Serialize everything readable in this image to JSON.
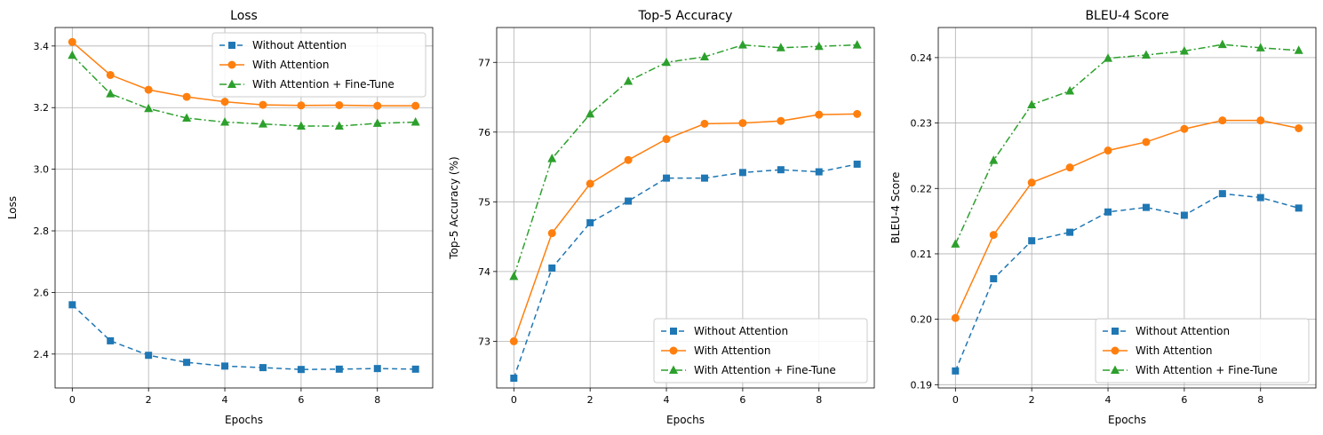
{
  "chart_data": [
    {
      "type": "line",
      "title": "Loss",
      "xlabel": "Epochs",
      "ylabel": "Loss",
      "xlim": [
        -0.45,
        9.45
      ],
      "ylim": [
        2.29,
        3.46
      ],
      "xticks": [
        0,
        2,
        4,
        6,
        8
      ],
      "xtick_labels": [
        "0",
        "2",
        "4",
        "6",
        "8"
      ],
      "yticks": [
        2.4,
        2.6,
        2.8,
        3.0,
        3.2,
        3.4
      ],
      "ytick_labels": [
        "2.4",
        "2.6",
        "2.8",
        "3.0",
        "3.2",
        "3.4"
      ],
      "grid": true,
      "legend_position": "top-right",
      "x": [
        0,
        1,
        2,
        3,
        4,
        5,
        6,
        7,
        8,
        9
      ],
      "series": [
        {
          "name": "Without Attention",
          "color": "#1f77b4",
          "linestyle": "dashed",
          "marker": "square",
          "values": [
            2.56,
            2.443,
            2.396,
            2.373,
            2.361,
            2.356,
            2.35,
            2.351,
            2.353,
            2.351
          ]
        },
        {
          "name": "With Attention",
          "color": "#ff7f0e",
          "linestyle": "solid",
          "marker": "circle",
          "values": [
            3.413,
            3.306,
            3.258,
            3.235,
            3.219,
            3.209,
            3.207,
            3.208,
            3.206,
            3.206
          ]
        },
        {
          "name": "With Attention + Fine-Tune",
          "color": "#2ca02c",
          "linestyle": "dashdot",
          "marker": "triangle",
          "values": [
            3.37,
            3.245,
            3.197,
            3.166,
            3.153,
            3.147,
            3.14,
            3.14,
            3.149,
            3.153
          ]
        }
      ]
    },
    {
      "type": "line",
      "title": "Top-5 Accuracy",
      "xlabel": "Epochs",
      "ylabel": "Top-5 Accuracy (%)",
      "xlim": [
        -0.45,
        9.45
      ],
      "ylim": [
        72.33,
        77.5
      ],
      "xticks": [
        0,
        2,
        4,
        6,
        8
      ],
      "xtick_labels": [
        "0",
        "2",
        "4",
        "6",
        "8"
      ],
      "yticks": [
        73,
        74,
        75,
        76,
        77
      ],
      "ytick_labels": [
        "73",
        "74",
        "75",
        "76",
        "77"
      ],
      "grid": true,
      "legend_position": "bottom-right",
      "x": [
        0,
        1,
        2,
        3,
        4,
        5,
        6,
        7,
        8,
        9
      ],
      "series": [
        {
          "name": "Without Attention",
          "color": "#1f77b4",
          "linestyle": "dashed",
          "marker": "square",
          "values": [
            72.47,
            74.05,
            74.7,
            75.01,
            75.34,
            75.34,
            75.42,
            75.46,
            75.43,
            75.54
          ]
        },
        {
          "name": "With Attention",
          "color": "#ff7f0e",
          "linestyle": "solid",
          "marker": "circle",
          "values": [
            73.0,
            74.55,
            75.26,
            75.6,
            75.9,
            76.12,
            76.13,
            76.16,
            76.25,
            76.26
          ]
        },
        {
          "name": "With Attention + Fine-Tune",
          "color": "#2ca02c",
          "linestyle": "dashdot",
          "marker": "triangle",
          "values": [
            73.93,
            75.62,
            76.26,
            76.73,
            77.0,
            77.08,
            77.25,
            77.21,
            77.23,
            77.25
          ]
        }
      ]
    },
    {
      "type": "line",
      "title": "BLEU-4 Score",
      "xlabel": "Epochs",
      "ylabel": "BLEU-4 Score",
      "xlim": [
        -0.45,
        9.45
      ],
      "ylim": [
        0.1895,
        0.2446
      ],
      "xticks": [
        0,
        2,
        4,
        6,
        8
      ],
      "xtick_labels": [
        "0",
        "2",
        "4",
        "6",
        "8"
      ],
      "yticks": [
        0.19,
        0.2,
        0.21,
        0.22,
        0.23,
        0.24
      ],
      "ytick_labels": [
        "0.19",
        "0.20",
        "0.21",
        "0.22",
        "0.23",
        "0.24"
      ],
      "grid": true,
      "legend_position": "bottom-right",
      "x": [
        0,
        1,
        2,
        3,
        4,
        5,
        6,
        7,
        8,
        9
      ],
      "series": [
        {
          "name": "Without Attention",
          "color": "#1f77b4",
          "linestyle": "dashed",
          "marker": "square",
          "values": [
            0.1921,
            0.2062,
            0.212,
            0.2133,
            0.2164,
            0.2171,
            0.2159,
            0.2192,
            0.2186,
            0.217
          ]
        },
        {
          "name": "With Attention",
          "color": "#ff7f0e",
          "linestyle": "solid",
          "marker": "circle",
          "values": [
            0.2002,
            0.2129,
            0.2209,
            0.2232,
            0.2258,
            0.2271,
            0.2291,
            0.2304,
            0.2304,
            0.2292
          ]
        },
        {
          "name": "With Attention + Fine-Tune",
          "color": "#2ca02c",
          "linestyle": "dashdot",
          "marker": "triangle",
          "values": [
            0.2115,
            0.2243,
            0.2328,
            0.2349,
            0.2399,
            0.2404,
            0.241,
            0.242,
            0.2415,
            0.2411
          ]
        }
      ]
    }
  ]
}
